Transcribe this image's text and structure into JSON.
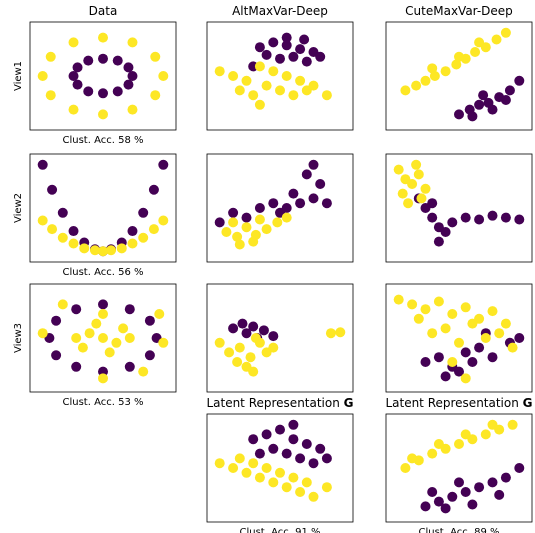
{
  "chart_data": [
    {
      "type": "scatter",
      "title": "Data",
      "ylabel": "View1",
      "caption": "Clust. Acc. 58 %",
      "xlim": [
        0,
        100
      ],
      "ylim": [
        0,
        100
      ],
      "series": [
        {
          "color": "#440154",
          "x": [
            72,
            69,
            61,
            50,
            39,
            31,
            28,
            31,
            39,
            50,
            61,
            69
          ],
          "y": [
            50,
            59,
            66,
            68,
            66,
            59,
            50,
            41,
            34,
            32,
            34,
            41
          ]
        },
        {
          "color": "#fde725",
          "x": [
            95,
            89,
            72,
            50,
            28,
            11,
            5,
            11,
            28,
            50,
            72,
            89
          ],
          "y": [
            50,
            70,
            85,
            90,
            85,
            70,
            50,
            30,
            15,
            10,
            15,
            30
          ]
        }
      ]
    },
    {
      "type": "scatter",
      "title": "AltMaxVar-Deep",
      "xlim": [
        0,
        100
      ],
      "ylim": [
        0,
        100
      ],
      "series": [
        {
          "color": "#440154",
          "x": [
            35,
            45,
            55,
            65,
            75,
            50,
            60,
            70,
            40,
            55,
            68,
            80,
            30
          ],
          "y": [
            80,
            85,
            82,
            78,
            75,
            68,
            70,
            65,
            72,
            90,
            88,
            70,
            60
          ]
        },
        {
          "color": "#fde725",
          "x": [
            5,
            15,
            25,
            35,
            45,
            55,
            65,
            75,
            20,
            30,
            40,
            50,
            60,
            70,
            85,
            35
          ],
          "y": [
            55,
            50,
            45,
            60,
            55,
            50,
            45,
            40,
            35,
            30,
            40,
            35,
            30,
            35,
            30,
            20
          ]
        }
      ]
    },
    {
      "type": "scatter",
      "title": "CuteMaxVar-Deep",
      "xlim": [
        0,
        100
      ],
      "ylim": [
        0,
        100
      ],
      "series": [
        {
          "color": "#440154",
          "x": [
            50,
            58,
            65,
            72,
            80,
            88,
            95,
            60,
            75,
            85,
            68
          ],
          "y": [
            10,
            15,
            20,
            22,
            28,
            35,
            45,
            8,
            15,
            25,
            30
          ]
        },
        {
          "color": "#fde725",
          "x": [
            10,
            18,
            25,
            32,
            40,
            48,
            55,
            62,
            70,
            78,
            85,
            30,
            50,
            65
          ],
          "y": [
            35,
            40,
            45,
            50,
            55,
            62,
            68,
            75,
            80,
            88,
            95,
            58,
            70,
            85
          ]
        }
      ]
    },
    {
      "type": "scatter",
      "ylabel": "View2",
      "caption": "Clust. Acc. 56 %",
      "xlim": [
        0,
        100
      ],
      "ylim": [
        0,
        100
      ],
      "series": [
        {
          "color": "#440154",
          "x": [
            5,
            12,
            20,
            28,
            36,
            44,
            50,
            56,
            64,
            72,
            80,
            88,
            95
          ],
          "y": [
            95,
            69,
            45,
            26,
            14,
            7,
            5,
            7,
            14,
            26,
            45,
            69,
            95
          ]
        },
        {
          "color": "#fde725",
          "x": [
            5,
            12,
            20,
            28,
            36,
            44,
            50,
            56,
            64,
            72,
            80,
            88,
            95
          ],
          "y": [
            37,
            28,
            19,
            13,
            8,
            6,
            5,
            6,
            8,
            13,
            19,
            28,
            37
          ]
        }
      ]
    },
    {
      "type": "scatter",
      "xlim": [
        0,
        100
      ],
      "ylim": [
        0,
        100
      ],
      "series": [
        {
          "color": "#440154",
          "x": [
            5,
            15,
            25,
            35,
            45,
            55,
            65,
            75,
            85,
            70,
            75,
            80,
            60,
            50
          ],
          "y": [
            35,
            45,
            40,
            50,
            55,
            50,
            55,
            60,
            55,
            85,
            95,
            75,
            65,
            45
          ]
        },
        {
          "color": "#fde725",
          "x": [
            10,
            18,
            25,
            32,
            40,
            48,
            20,
            30,
            15,
            35,
            55
          ],
          "y": [
            25,
            20,
            30,
            22,
            28,
            35,
            12,
            15,
            35,
            38,
            40
          ]
        }
      ]
    },
    {
      "type": "scatter",
      "xlim": [
        0,
        100
      ],
      "ylim": [
        0,
        100
      ],
      "series": [
        {
          "color": "#440154",
          "x": [
            20,
            25,
            30,
            35,
            40,
            45,
            55,
            65,
            75,
            85,
            95,
            35,
            30
          ],
          "y": [
            60,
            50,
            40,
            30,
            25,
            35,
            40,
            38,
            42,
            40,
            38,
            15,
            55
          ]
        },
        {
          "color": "#fde725",
          "x": [
            5,
            10,
            15,
            20,
            25,
            8,
            18,
            12,
            22
          ],
          "y": [
            90,
            80,
            75,
            85,
            70,
            65,
            95,
            55,
            60
          ]
        }
      ]
    },
    {
      "type": "scatter",
      "ylabel": "View3",
      "caption": "Clust. Acc. 53 %",
      "xlim": [
        0,
        100
      ],
      "ylim": [
        0,
        100
      ],
      "series": [
        {
          "color": "#440154",
          "x": [
            90,
            85,
            70,
            50,
            30,
            15,
            10,
            15,
            30,
            50,
            70,
            85
          ],
          "y": [
            50,
            68,
            80,
            85,
            80,
            68,
            50,
            32,
            20,
            15,
            20,
            32
          ]
        },
        {
          "color": "#fde725",
          "x": [
            50,
            40,
            60,
            35,
            65,
            45,
            55,
            50,
            30,
            70,
            5,
            95,
            20,
            80,
            50,
            92
          ],
          "y": [
            50,
            55,
            45,
            40,
            60,
            65,
            35,
            75,
            50,
            50,
            55,
            45,
            85,
            15,
            8,
            75
          ]
        }
      ]
    },
    {
      "type": "scatter",
      "xlim": [
        0,
        100
      ],
      "ylim": [
        0,
        100
      ],
      "series": [
        {
          "color": "#440154",
          "x": [
            15,
            22,
            30,
            38,
            25,
            33,
            45
          ],
          "y": [
            60,
            65,
            62,
            58,
            55,
            50,
            52
          ]
        },
        {
          "color": "#fde725",
          "x": [
            5,
            12,
            20,
            28,
            35,
            40,
            18,
            25,
            32,
            45,
            88,
            95,
            30
          ],
          "y": [
            45,
            35,
            40,
            30,
            45,
            35,
            25,
            20,
            50,
            40,
            55,
            56,
            15
          ]
        }
      ]
    },
    {
      "type": "scatter",
      "xlim": [
        0,
        100
      ],
      "ylim": [
        0,
        100
      ],
      "series": [
        {
          "color": "#440154",
          "x": [
            25,
            35,
            45,
            55,
            65,
            75,
            40,
            50,
            60,
            70,
            88,
            95
          ],
          "y": [
            25,
            30,
            20,
            35,
            40,
            30,
            10,
            15,
            25,
            55,
            45,
            50
          ]
        },
        {
          "color": "#fde725",
          "x": [
            5,
            15,
            25,
            35,
            45,
            55,
            65,
            75,
            85,
            20,
            40,
            60,
            80,
            30,
            50,
            70,
            90,
            45,
            55
          ],
          "y": [
            90,
            85,
            80,
            88,
            75,
            82,
            70,
            78,
            65,
            70,
            60,
            65,
            55,
            55,
            45,
            50,
            40,
            25,
            8
          ]
        }
      ]
    },
    {
      "type": "scatter",
      "title": "Latent Representation",
      "title_emphasis": "G",
      "caption": "Clust. Acc. 91 %",
      "xlim": [
        0,
        100
      ],
      "ylim": [
        0,
        100
      ],
      "series": [
        {
          "color": "#440154",
          "x": [
            30,
            40,
            50,
            60,
            70,
            80,
            45,
            55,
            65,
            75,
            35,
            85,
            60
          ],
          "y": [
            80,
            85,
            90,
            80,
            75,
            70,
            70,
            65,
            60,
            55,
            65,
            60,
            95
          ]
        },
        {
          "color": "#fde725",
          "x": [
            5,
            15,
            25,
            35,
            45,
            55,
            65,
            75,
            20,
            30,
            40,
            50,
            60,
            70,
            85
          ],
          "y": [
            55,
            50,
            45,
            40,
            35,
            30,
            25,
            20,
            60,
            55,
            50,
            45,
            40,
            35,
            30
          ]
        }
      ]
    },
    {
      "type": "scatter",
      "title": "Latent Representation",
      "title_emphasis": "G",
      "caption": "Clust. Acc. 89 %",
      "xlim": [
        0,
        100
      ],
      "ylim": [
        0,
        100
      ],
      "series": [
        {
          "color": "#440154",
          "x": [
            25,
            35,
            45,
            55,
            65,
            75,
            85,
            95,
            40,
            60,
            80,
            30,
            50
          ],
          "y": [
            10,
            15,
            20,
            25,
            30,
            35,
            40,
            50,
            8,
            12,
            22,
            25,
            35
          ]
        },
        {
          "color": "#fde725",
          "x": [
            10,
            20,
            30,
            40,
            50,
            60,
            70,
            80,
            90,
            15,
            35,
            55,
            75
          ],
          "y": [
            50,
            58,
            65,
            70,
            75,
            80,
            85,
            90,
            95,
            60,
            75,
            85,
            95
          ]
        }
      ]
    }
  ]
}
